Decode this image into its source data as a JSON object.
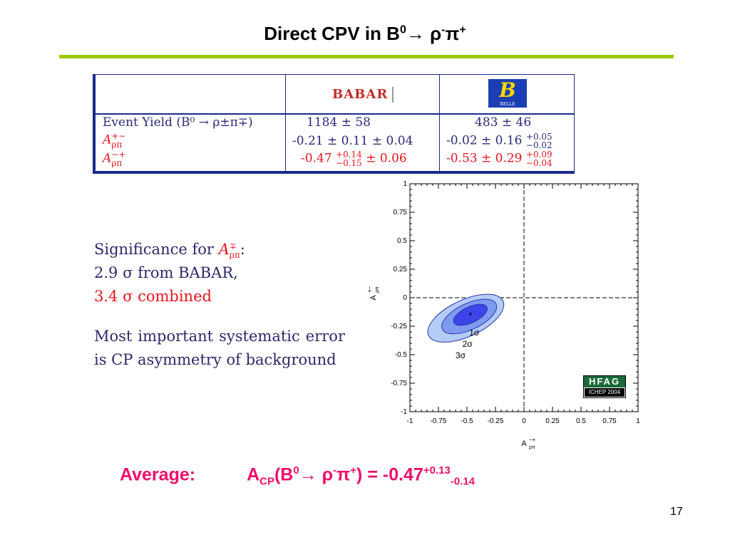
{
  "slide": {
    "title_prefix": "Direct CPV in B",
    "title_sup0": "0",
    "title_arrow": "→ ρ",
    "title_sup_minus": "-",
    "title_pi": "π",
    "title_sup_plus": "+",
    "page_number": "17"
  },
  "table": {
    "babar_label": "BABAR",
    "belle_label": "B",
    "belle_sub": "BELLE",
    "rows": [
      {
        "label": "Event Yield (B⁰ → ρ±π∓)",
        "babar": "1184 ± 58",
        "belle": "483 ± 46"
      },
      {
        "label": "A",
        "label_sup": "+−",
        "label_sub": "ρπ",
        "babar": "-0.21 ± 0.11 ± 0.04",
        "belle": "-0.02 ± 0.16",
        "belle_up": "+0.05",
        "belle_dn": "−0.02"
      },
      {
        "label": "A",
        "label_sup": "−+",
        "label_sub": "ρπ",
        "babar_val": "-0.47",
        "babar_up": "+0.14",
        "babar_dn": "−0.15",
        "babar_sys": "± 0.06",
        "belle": "-0.53 ± 0.29",
        "belle_up": "+0.09",
        "belle_dn": "−0.04"
      }
    ]
  },
  "significance": {
    "line1_prefix": "Significance for ",
    "line1_sym": "A",
    "line1_sup": "∓",
    "line1_sub": "ρπ",
    "line1_suffix": ":",
    "line2": "2.9 σ from BABAR,",
    "line3": "3.4 σ combined"
  },
  "systematic": "Most important systematic error is CP asymmetry of background",
  "average": {
    "label": "Average:",
    "A": "A",
    "sub_cp": "CP",
    "open": "(B",
    "sup0": "0",
    "arrow": "→ ρ",
    "sup_minus": "-",
    "pi": "π",
    "sup_plus": "+",
    "eq": ") = -0.47",
    "up": "+0.13",
    "dn": "-0.14"
  },
  "plot": {
    "xticks": [
      "-1",
      "-0.75",
      "-0.5",
      "-0.25",
      "0",
      "0.25",
      "0.5",
      "0.75",
      "1"
    ],
    "yticks": [
      "1",
      "0.75",
      "0.5",
      "0.25",
      "0",
      "-0.25",
      "-0.5",
      "-0.75",
      "-1"
    ],
    "xlabel": "A",
    "xlabel_sup": "−+",
    "xlabel_sub": "ρπ",
    "ylabel": "A",
    "ylabel_sup": "+−",
    "ylabel_sub": "ρπ",
    "contour_labels": [
      "1σ",
      "2σ",
      "3σ"
    ],
    "hfag_line1": "HFAG",
    "hfag_line2": "ICHEP 2004",
    "center_x": -0.47,
    "center_y": -0.15,
    "colors": {
      "c1": "#3d44e8",
      "c2": "#7f9bef",
      "c3": "#b4cdf7",
      "edge": "#2a36b0"
    }
  }
}
